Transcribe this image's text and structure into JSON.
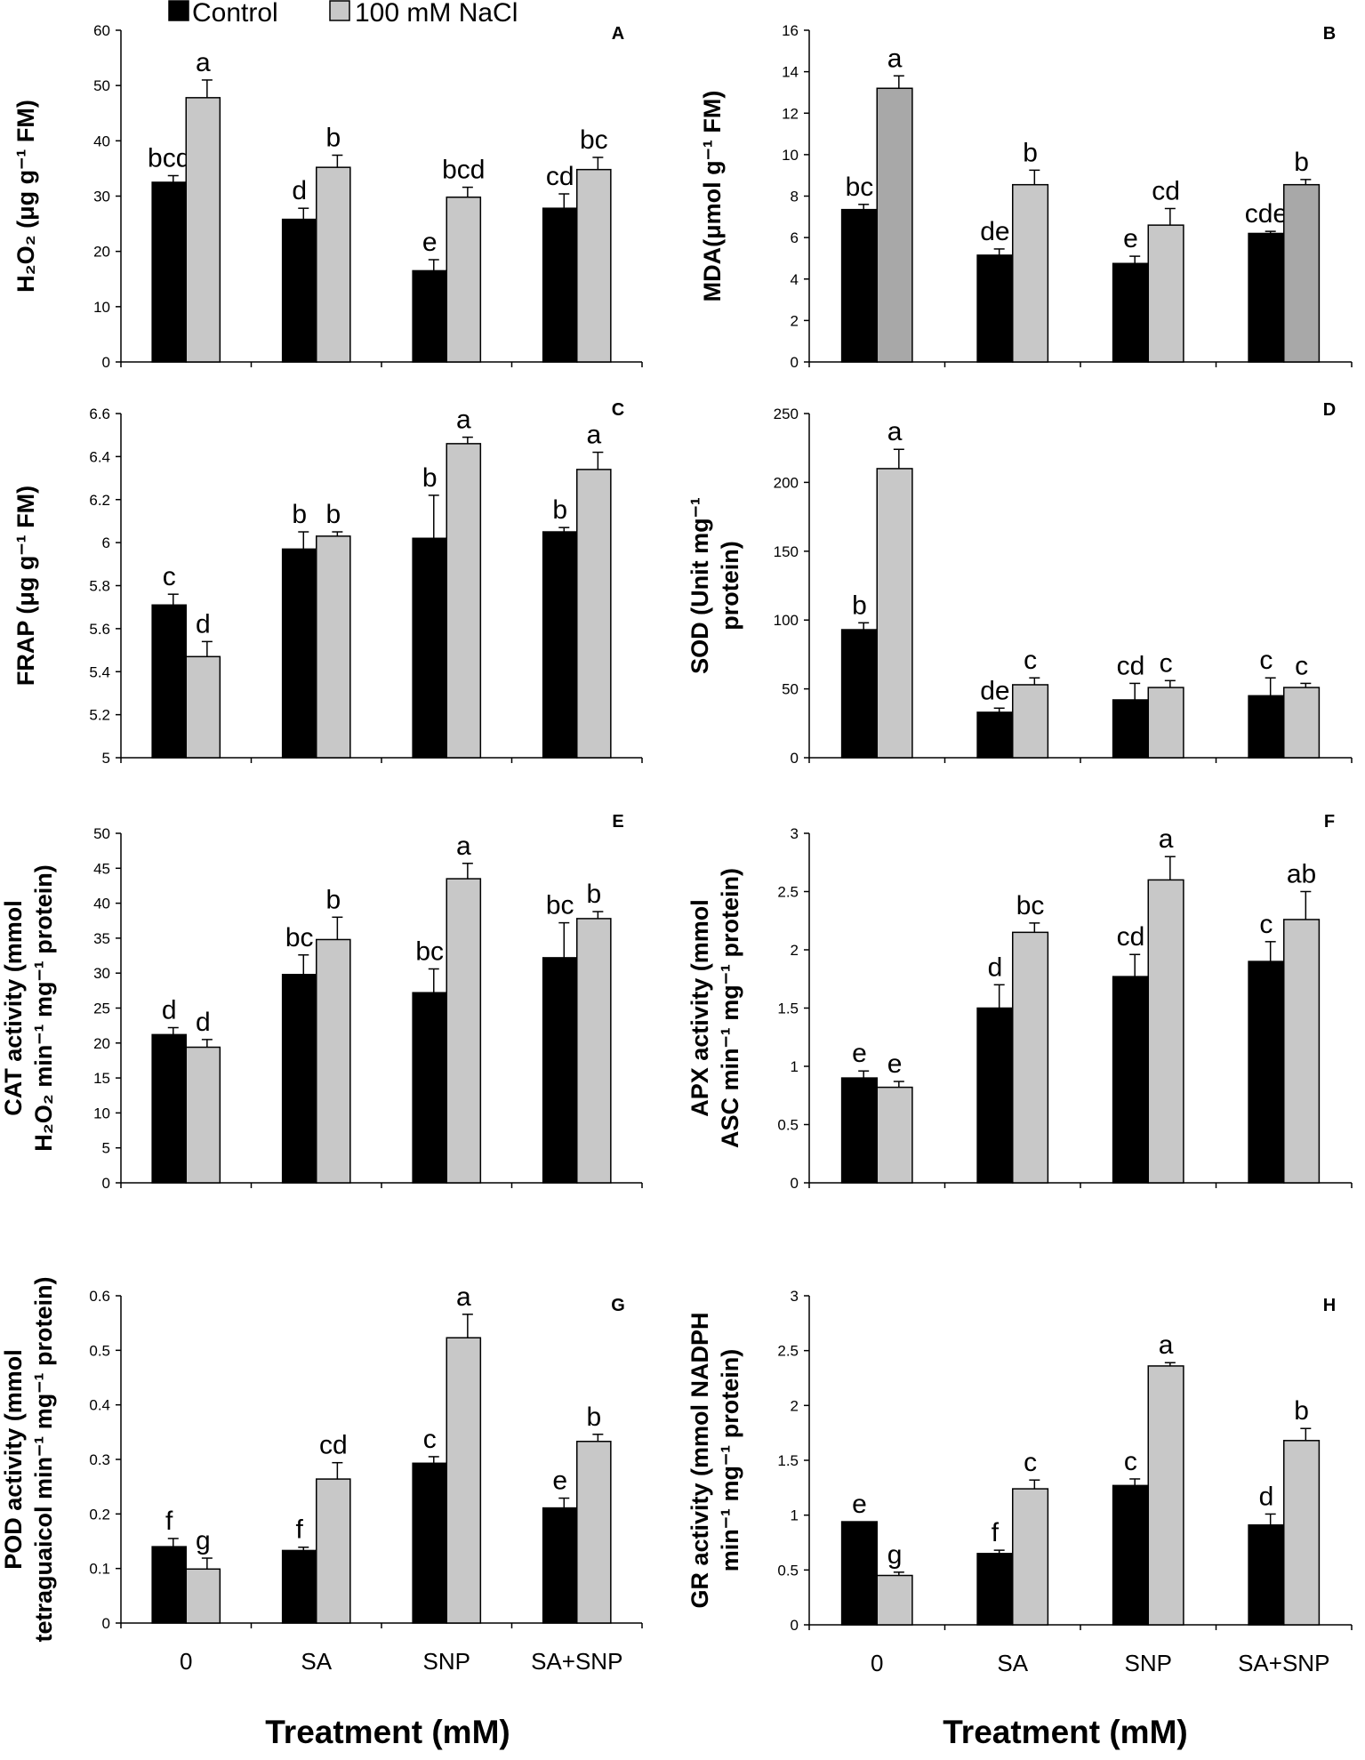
{
  "legend": [
    {
      "name": "Control",
      "color": "#000000"
    },
    {
      "name": "100 mM NaCl",
      "color": "#c8c8c8"
    }
  ],
  "x_title": "Treatment (mM)",
  "chart_data": [
    {
      "panel": "A",
      "type": "bar",
      "ylabel_lines": [
        "H2O2 (μg g-1 FM)"
      ],
      "ylabel_display": "H₂O₂ (μg g⁻¹ FM)",
      "categories": [
        "0",
        "SA",
        "SNP",
        "SA+SNP"
      ],
      "ylim": [
        0,
        60
      ],
      "yticks": [
        0,
        10,
        20,
        30,
        40,
        50,
        60
      ],
      "series": [
        {
          "name": "Control",
          "color": "#000000",
          "values": [
            32.5,
            25.8,
            16.5,
            27.8
          ],
          "errors": [
            1.2,
            2.0,
            2.0,
            2.6
          ],
          "letters": [
            "bcd",
            "d",
            "e",
            "cd"
          ]
        },
        {
          "name": "100 mM NaCl",
          "color": "#c8c8c8",
          "values": [
            47.8,
            35.2,
            29.8,
            34.8
          ],
          "errors": [
            3.2,
            2.2,
            1.8,
            2.2
          ],
          "letters": [
            "a",
            "b",
            "bcd",
            "bc"
          ]
        }
      ]
    },
    {
      "panel": "B",
      "type": "bar",
      "ylabel_lines": [
        "MDA(μmol g-1 FM)"
      ],
      "ylabel_display": "MDA(μmol g⁻¹ FM)",
      "categories": [
        "0",
        "SA",
        "SNP",
        "SA+SNP"
      ],
      "ylim": [
        0,
        16
      ],
      "yticks": [
        0,
        2,
        4,
        6,
        8,
        10,
        12,
        14,
        16
      ],
      "series": [
        {
          "name": "Control",
          "color": "#000000",
          "values": [
            7.35,
            5.15,
            4.75,
            6.2
          ],
          "errors": [
            0.25,
            0.3,
            0.35,
            0.1
          ],
          "letters": [
            "bc",
            "de",
            "e",
            "cde"
          ]
        },
        {
          "name": "100 mM NaCl",
          "color": "#c8c8c8",
          "values": [
            13.2,
            8.55,
            6.6,
            8.55
          ],
          "errors": [
            0.6,
            0.7,
            0.8,
            0.25
          ],
          "letters": [
            "a",
            "b",
            "cd",
            "b"
          ]
        }
      ]
    },
    {
      "panel": "C",
      "type": "bar",
      "ylabel_lines": [
        "FRAP (μg g-1 FM)"
      ],
      "ylabel_display": "FRAP (μg g⁻¹ FM)",
      "categories": [
        "0",
        "SA",
        "SNP",
        "SA+SNP"
      ],
      "ylim": [
        5,
        6.6
      ],
      "yticks": [
        5,
        5.2,
        5.4,
        5.6,
        5.8,
        6,
        6.2,
        6.4,
        6.6
      ],
      "ytick_labels": [
        "5",
        "5.2",
        "5.4",
        "5.6",
        "5.8",
        "6",
        "6.2",
        "6.4",
        "6.6"
      ],
      "series": [
        {
          "name": "Control",
          "color": "#000000",
          "values": [
            5.71,
            5.97,
            6.02,
            6.05
          ],
          "errors": [
            0.05,
            0.08,
            0.2,
            0.02
          ],
          "letters": [
            "c",
            "b",
            "b",
            "b"
          ]
        },
        {
          "name": "100 mM NaCl",
          "color": "#c8c8c8",
          "values": [
            5.47,
            6.03,
            6.46,
            6.34
          ],
          "errors": [
            0.07,
            0.02,
            0.03,
            0.08
          ],
          "letters": [
            "d",
            "b",
            "a",
            "a"
          ]
        }
      ]
    },
    {
      "panel": "D",
      "type": "bar",
      "ylabel_lines": [
        "SOD (Unit mg-1",
        "protein)"
      ],
      "ylabel_display": [
        "SOD (Unit mg⁻¹",
        "protein)"
      ],
      "categories": [
        "0",
        "SA",
        "SNP",
        "SA+SNP"
      ],
      "ylim": [
        0,
        250
      ],
      "yticks": [
        0,
        50,
        100,
        150,
        200,
        250
      ],
      "series": [
        {
          "name": "Control",
          "color": "#000000",
          "values": [
            93,
            33,
            42,
            45
          ],
          "errors": [
            5,
            3,
            12,
            13
          ],
          "letters": [
            "b",
            "de",
            "cd",
            "c"
          ]
        },
        {
          "name": "100 mM NaCl",
          "color": "#c8c8c8",
          "values": [
            210,
            53,
            51,
            51
          ],
          "errors": [
            14,
            5,
            5,
            3
          ],
          "letters": [
            "a",
            "c",
            "c",
            "c"
          ]
        }
      ]
    },
    {
      "panel": "E",
      "type": "bar",
      "ylabel_lines": [
        "CAT activity (mmol",
        "H2O2 min-1 mg-1 protein)"
      ],
      "ylabel_display": [
        "CAT activity (mmol",
        "H₂O₂ min⁻¹ mg⁻¹ protein)"
      ],
      "categories": [
        "0",
        "SA",
        "SNP",
        "SA+SNP"
      ],
      "ylim": [
        0,
        50
      ],
      "yticks": [
        0,
        5,
        10,
        15,
        20,
        25,
        30,
        35,
        40,
        45,
        50
      ],
      "series": [
        {
          "name": "Control",
          "color": "#000000",
          "values": [
            21.2,
            29.8,
            27.2,
            32.2
          ],
          "errors": [
            1.0,
            2.8,
            3.4,
            5.0
          ],
          "letters": [
            "d",
            "bc",
            "bc",
            "bc"
          ]
        },
        {
          "name": "100 mM NaCl",
          "color": "#c8c8c8",
          "values": [
            19.4,
            34.8,
            43.5,
            37.8
          ],
          "errors": [
            1.1,
            3.2,
            2.2,
            1.0
          ],
          "letters": [
            "d",
            "b",
            "a",
            "b"
          ]
        }
      ]
    },
    {
      "panel": "F",
      "type": "bar",
      "ylabel_lines": [
        "APX activity (mmol",
        "ASC min-1 mg-1 protein)"
      ],
      "ylabel_display": [
        "APX activity (mmol",
        "ASC min⁻¹ mg⁻¹ protein)"
      ],
      "categories": [
        "0",
        "SA",
        "SNP",
        "SA+SNP"
      ],
      "ylim": [
        0,
        3
      ],
      "yticks": [
        0,
        0.5,
        1,
        1.5,
        2,
        2.5,
        3
      ],
      "ytick_labels": [
        "0",
        "0.5",
        "1",
        "1.5",
        "2",
        "2.5",
        "3"
      ],
      "series": [
        {
          "name": "Control",
          "color": "#000000",
          "values": [
            0.9,
            1.5,
            1.77,
            1.9
          ],
          "errors": [
            0.06,
            0.2,
            0.19,
            0.17
          ],
          "letters": [
            "e",
            "d",
            "cd",
            "c"
          ]
        },
        {
          "name": "100 mM NaCl",
          "color": "#c8c8c8",
          "values": [
            0.82,
            2.15,
            2.6,
            2.26
          ],
          "errors": [
            0.05,
            0.08,
            0.2,
            0.24
          ],
          "letters": [
            "e",
            "bc",
            "a",
            "ab"
          ]
        }
      ]
    },
    {
      "panel": "G",
      "type": "bar",
      "ylabel_lines": [
        "POD activity (mmol",
        "tetraguaicol min-1 mg-1 protein)"
      ],
      "ylabel_display": [
        "POD activity (mmol",
        "tetraguaicol min⁻¹ mg⁻¹ protein)"
      ],
      "categories": [
        "0",
        "SA",
        "SNP",
        "SA+SNP"
      ],
      "ylim": [
        0,
        0.6
      ],
      "yticks": [
        0,
        0.1,
        0.2,
        0.3,
        0.4,
        0.5,
        0.6
      ],
      "ytick_labels": [
        "0",
        "0.1",
        "0.2",
        "0.3",
        "0.4",
        "0.5",
        "0.6"
      ],
      "series": [
        {
          "name": "Control",
          "color": "#000000",
          "values": [
            0.14,
            0.133,
            0.293,
            0.211
          ],
          "errors": [
            0.015,
            0.006,
            0.012,
            0.018
          ],
          "letters": [
            "f",
            "f",
            "c",
            "e"
          ]
        },
        {
          "name": "100 mM NaCl",
          "color": "#c8c8c8",
          "values": [
            0.099,
            0.264,
            0.523,
            0.333
          ],
          "errors": [
            0.02,
            0.03,
            0.043,
            0.013
          ],
          "letters": [
            "g",
            "cd",
            "a",
            "b"
          ]
        }
      ]
    },
    {
      "panel": "H",
      "type": "bar",
      "ylabel_lines": [
        "GR activity (mmol NADPH",
        "min-1 mg-1 protein)"
      ],
      "ylabel_display": [
        "GR activity (mmol NADPH",
        "min⁻¹ mg⁻¹ protein)"
      ],
      "categories": [
        "0",
        "SA",
        "SNP",
        "SA+SNP"
      ],
      "ylim": [
        0,
        3
      ],
      "yticks": [
        0,
        0.5,
        1,
        1.5,
        2,
        2.5,
        3
      ],
      "ytick_labels": [
        "0",
        "0.5",
        "1",
        "1.5",
        "2",
        "2.5",
        "3"
      ],
      "series": [
        {
          "name": "Control",
          "color": "#000000",
          "values": [
            0.94,
            0.65,
            1.27,
            0.91
          ],
          "errors": [
            0.0,
            0.03,
            0.06,
            0.1
          ],
          "letters": [
            "e",
            "f",
            "c",
            "d"
          ]
        },
        {
          "name": "100 mM NaCl",
          "color": "#c8c8c8",
          "values": [
            0.45,
            1.24,
            2.36,
            1.68
          ],
          "errors": [
            0.03,
            0.08,
            0.03,
            0.11
          ],
          "letters": [
            "g",
            "c",
            "a",
            "b"
          ]
        }
      ]
    }
  ]
}
